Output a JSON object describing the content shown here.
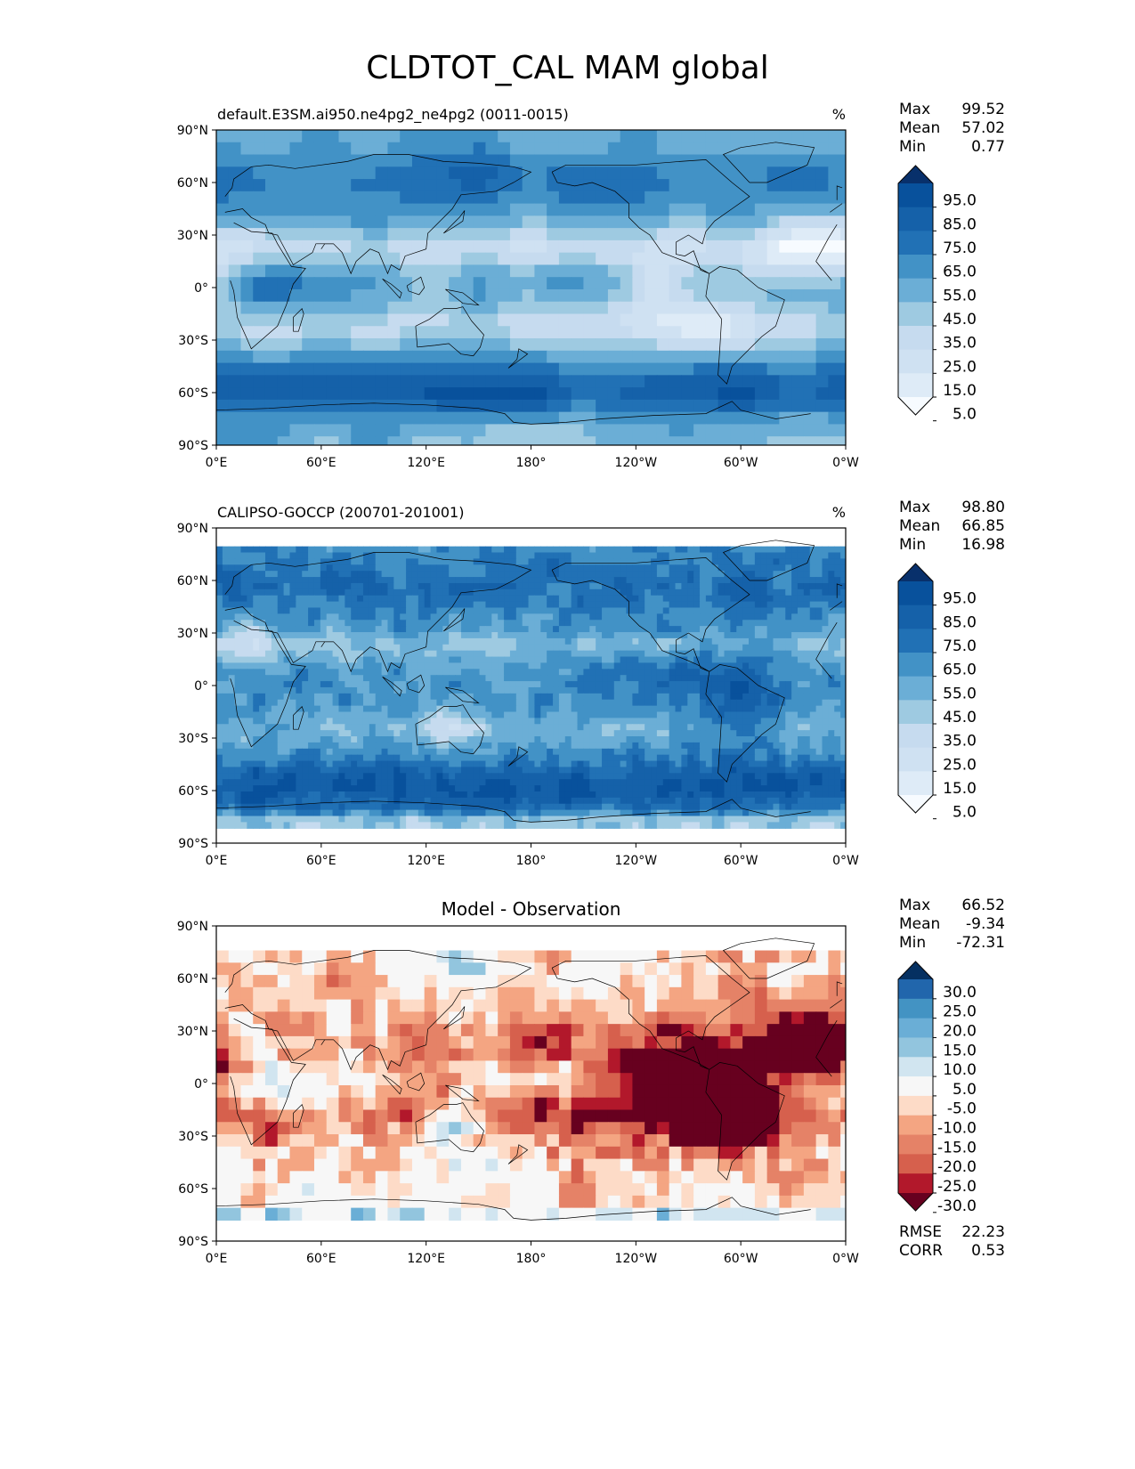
{
  "title": "CLDTOT_CAL MAM global",
  "colors": {
    "blues": [
      "#f7fbff",
      "#deebf7",
      "#cfe1f2",
      "#c6dbef",
      "#9ecae1",
      "#6baed6",
      "#4292c6",
      "#2171b5",
      "#1561a9",
      "#08519c",
      "#08306b"
    ],
    "rdbu": [
      "#67001f",
      "#b2182b",
      "#d6604d",
      "#e58267",
      "#f4a582",
      "#fddbc7",
      "#f7f7f7",
      "#d1e5f0",
      "#92c5de",
      "#6aaed6",
      "#4393c3",
      "#2166ac",
      "#053061"
    ],
    "land": "#000000"
  },
  "chart_data": [
    {
      "type": "heatmap",
      "title": "default.E3SM.ai950.ne4pg2_ne4pg2 (0011-0015)",
      "units": "%",
      "stats": [
        {
          "label": "Max",
          "value": "99.52"
        },
        {
          "label": "Mean",
          "value": "57.02"
        },
        {
          "label": "Min",
          "value": "0.77"
        }
      ],
      "colorbar_ticks": [
        "95.0",
        "85.0",
        "75.0",
        "65.0",
        "55.0",
        "45.0",
        "35.0",
        "25.0",
        "15.0",
        "5.0"
      ],
      "xticks": [
        "0°E",
        "60°E",
        "120°E",
        "180°",
        "120°W",
        "60°W",
        "0°W"
      ],
      "yticks": [
        "90°N",
        "60°N",
        "30°N",
        "0°",
        "30°S",
        "60°S",
        "90°S"
      ],
      "xlim": [
        0,
        360
      ],
      "ylim": [
        -90,
        90
      ],
      "colormap": "blues"
    },
    {
      "type": "heatmap",
      "title": "CALIPSO-GOCCP (200701-201001)",
      "units": "%",
      "stats": [
        {
          "label": "Max",
          "value": "98.80"
        },
        {
          "label": "Mean",
          "value": "66.85"
        },
        {
          "label": "Min",
          "value": "16.98"
        }
      ],
      "colorbar_ticks": [
        "95.0",
        "85.0",
        "75.0",
        "65.0",
        "55.0",
        "45.0",
        "35.0",
        "25.0",
        "15.0",
        "5.0"
      ],
      "xticks": [
        "0°E",
        "60°E",
        "120°E",
        "180°",
        "120°W",
        "60°W",
        "0°W"
      ],
      "yticks": [
        "90°N",
        "60°N",
        "30°N",
        "0°",
        "30°S",
        "60°S",
        "90°S"
      ],
      "xlim": [
        0,
        360
      ],
      "ylim": [
        -90,
        90
      ],
      "colormap": "blues"
    },
    {
      "type": "heatmap",
      "title": "Model - Observation",
      "units": "",
      "stats": [
        {
          "label": "Max",
          "value": "66.52"
        },
        {
          "label": "Mean",
          "value": "-9.34"
        },
        {
          "label": "Min",
          "value": "-72.31"
        }
      ],
      "extra_stats": [
        {
          "label": "RMSE",
          "value": "22.23"
        },
        {
          "label": "CORR",
          "value": "0.53"
        }
      ],
      "colorbar_ticks": [
        "30.0",
        "25.0",
        "20.0",
        "15.0",
        "10.0",
        "5.0",
        "-5.0",
        "-10.0",
        "-15.0",
        "-20.0",
        "-25.0",
        "-30.0"
      ],
      "xticks": [
        "0°E",
        "60°E",
        "120°E",
        "180°",
        "120°W",
        "60°W",
        "0°W"
      ],
      "yticks": [
        "90°N",
        "60°N",
        "30°N",
        "0°",
        "30°S",
        "60°S",
        "90°S"
      ],
      "xlim": [
        0,
        360
      ],
      "ylim": [
        -90,
        90
      ],
      "colormap": "rdbu"
    }
  ]
}
